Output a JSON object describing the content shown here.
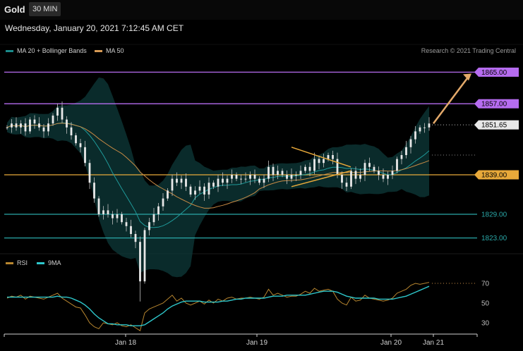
{
  "header": {
    "symbol": "Gold",
    "timeframe": "30 MIN",
    "datetime": "Wednesday, January 20, 2021 7:12:45 AM CET",
    "copyright": "Research © 2021 Trading Central"
  },
  "legend_main": [
    {
      "label": "MA 20 + Bollinger Bands",
      "color": "#1a8a8a"
    },
    {
      "label": "MA 50",
      "color": "#d79a55"
    }
  ],
  "legend_rsi": [
    {
      "label": "RSI",
      "color": "#b8862f"
    },
    {
      "label": "9MA",
      "color": "#2ec8cc"
    }
  ],
  "colors": {
    "candle": "#e8e8e8",
    "candle_wick": "#bfbfbf",
    "resistance": "#b66cf0",
    "support": "#2aa8a8",
    "pivot": "#e8a93a",
    "arrow": "#e3a96a",
    "band_fill": "#0d3a3a",
    "ma20": "#1f9a9a",
    "ma50": "#c98b45"
  },
  "chart_data": {
    "type": "candlestick",
    "price_axis": {
      "range": [
        1819,
        1869
      ]
    },
    "x_labels": [
      "Jan 18",
      "Jan 19",
      "Jan 20",
      "Jan 21"
    ],
    "levels": [
      {
        "value": 1865.0,
        "label": "1865.00",
        "kind": "resistance"
      },
      {
        "value": 1857.0,
        "label": "1857.00",
        "kind": "resistance"
      },
      {
        "value": 1851.65,
        "label": "1851.65",
        "kind": "last"
      },
      {
        "value": 1839.0,
        "label": "1839.00",
        "kind": "pivot"
      },
      {
        "value": 1829.0,
        "label": "1829.00",
        "kind": "support"
      },
      {
        "value": 1823.0,
        "label": "1823.00",
        "kind": "support"
      }
    ],
    "price_path": [
      1851,
      1852,
      1851,
      1852,
      1850,
      1853,
      1852,
      1851,
      1850,
      1852,
      1854,
      1856,
      1853,
      1851,
      1849,
      1847,
      1846,
      1842,
      1837,
      1833,
      1829,
      1830,
      1829,
      1828,
      1829,
      1827,
      1826,
      1824,
      1822,
      1812,
      1825,
      1827,
      1829,
      1831,
      1833,
      1835,
      1838,
      1837,
      1838,
      1836,
      1834,
      1835,
      1836,
      1834,
      1837,
      1836,
      1838,
      1837,
      1838,
      1839,
      1838,
      1838,
      1838,
      1839,
      1838,
      1837,
      1838,
      1841,
      1839,
      1840,
      1839,
      1838,
      1839,
      1839,
      1840,
      1841,
      1840,
      1843,
      1842,
      1843,
      1844,
      1843,
      1839,
      1837,
      1836,
      1840,
      1838,
      1839,
      1842,
      1841,
      1840,
      1839,
      1838,
      1839,
      1840,
      1843,
      1844,
      1846,
      1848,
      1850,
      1851,
      1851,
      1852
    ],
    "rsi": {
      "axis_ticks": [
        70,
        50,
        30
      ],
      "values": [
        55,
        57,
        56,
        58,
        54,
        57,
        56,
        55,
        54,
        56,
        58,
        60,
        55,
        52,
        49,
        46,
        45,
        38,
        30,
        26,
        24,
        30,
        29,
        28,
        30,
        27,
        26,
        28,
        25,
        22,
        40,
        44,
        46,
        48,
        50,
        54,
        58,
        52,
        55,
        50,
        48,
        50,
        52,
        49,
        53,
        50,
        54,
        52,
        55,
        56,
        54,
        55,
        55,
        56,
        55,
        54,
        56,
        64,
        58,
        60,
        58,
        56,
        57,
        57,
        59,
        62,
        60,
        65,
        62,
        63,
        64,
        62,
        54,
        50,
        48,
        56,
        52,
        53,
        58,
        55,
        54,
        53,
        52,
        53,
        55,
        60,
        62,
        64,
        68,
        70,
        69,
        70,
        71
      ],
      "ma9": [
        56,
        56,
        56,
        56,
        56,
        56,
        56,
        56,
        56,
        56,
        56,
        57,
        56,
        56,
        55,
        53,
        51,
        48,
        44,
        39,
        35,
        32,
        29,
        29,
        28,
        28,
        28,
        27,
        27,
        27,
        28,
        31,
        34,
        37,
        40,
        44,
        47,
        49,
        51,
        52,
        52,
        52,
        52,
        51,
        51,
        51,
        51,
        52,
        52,
        53,
        54,
        54,
        55,
        55,
        55,
        55,
        55,
        56,
        57,
        57,
        57,
        58,
        58,
        58,
        58,
        58,
        59,
        60,
        61,
        62,
        62,
        62,
        61,
        59,
        57,
        56,
        55,
        55,
        55,
        55,
        55,
        54,
        54,
        54,
        54,
        55,
        56,
        57,
        59,
        61,
        63,
        65,
        67
      ]
    },
    "annotations": [
      {
        "type": "triangle",
        "upper": [
          1846,
          1841
        ],
        "lower": [
          1836,
          1840
        ]
      },
      {
        "type": "arrow",
        "from": 1852,
        "to": 1865
      }
    ]
  }
}
